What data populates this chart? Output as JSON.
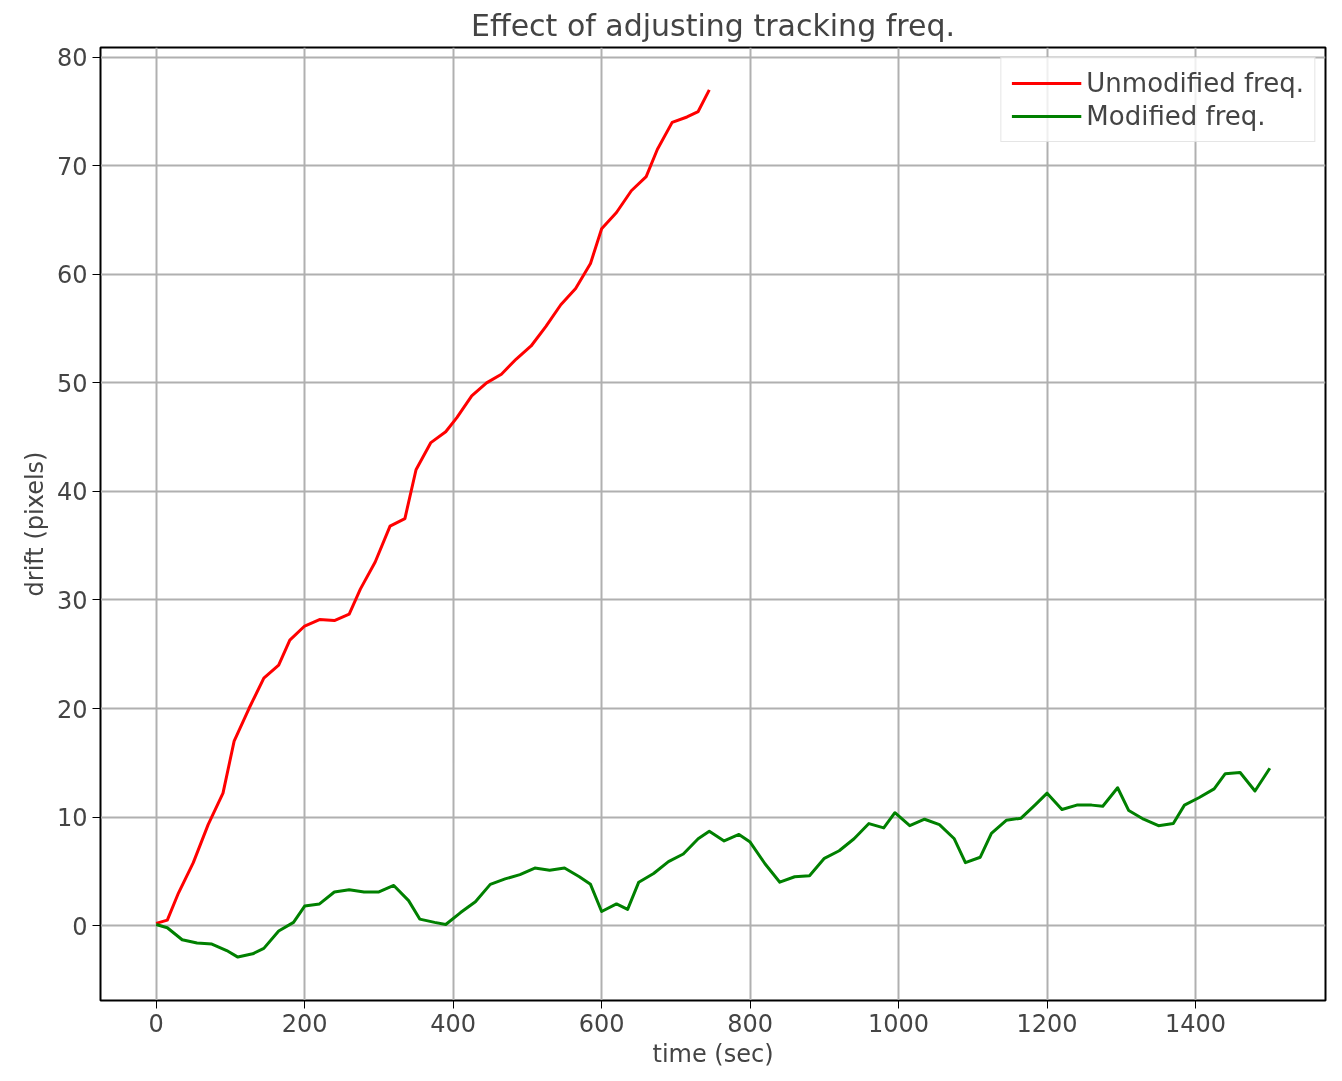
{
  "chart_data": {
    "type": "line",
    "title": "Effect of adjusting tracking freq.",
    "xlabel": "time (sec)",
    "ylabel": "drift (pixels)",
    "xlim": [
      -75,
      1575
    ],
    "ylim": [
      -6.9,
      80.9
    ],
    "xticks": [
      0,
      200,
      400,
      600,
      800,
      1000,
      1200,
      1400
    ],
    "yticks": [
      0,
      10,
      20,
      30,
      40,
      50,
      60,
      70,
      80
    ],
    "grid": true,
    "legend": "top right",
    "line_style": "solid",
    "series": [
      {
        "name": "Unmodified freq.",
        "color": "#ff0000",
        "x": [
          0,
          15,
          30,
          50,
          70,
          90,
          105,
          125,
          145,
          165,
          180,
          200,
          220,
          240,
          260,
          275,
          295,
          315,
          335,
          350,
          370,
          390,
          405,
          425,
          445,
          465,
          485,
          505,
          525,
          545,
          565,
          585,
          600,
          620,
          640,
          660,
          675,
          695,
          715,
          730,
          745
        ],
        "values": [
          0.2,
          0.5,
          3,
          5.8,
          9.3,
          12.2,
          17,
          20,
          22.8,
          24,
          26.3,
          27.6,
          28.2,
          28.1,
          28.7,
          31,
          33.5,
          36.8,
          37.5,
          42,
          44.5,
          45.5,
          46.8,
          48.8,
          50,
          50.8,
          52.2,
          53.4,
          55.2,
          57.2,
          58.7,
          61,
          64.2,
          65.7,
          67.7,
          69,
          71.5,
          74,
          74.5,
          75,
          77
        ]
      },
      {
        "name": "Modified freq.",
        "color": "#008000",
        "x": [
          0,
          15,
          35,
          55,
          75,
          95,
          110,
          130,
          145,
          165,
          185,
          200,
          220,
          240,
          260,
          280,
          300,
          320,
          340,
          355,
          375,
          390,
          410,
          430,
          450,
          470,
          490,
          510,
          530,
          550,
          570,
          585,
          600,
          620,
          635,
          650,
          670,
          690,
          710,
          730,
          745,
          765,
          785,
          800,
          820,
          840,
          860,
          880,
          900,
          920,
          940,
          960,
          980,
          995,
          1015,
          1035,
          1055,
          1075,
          1090,
          1110,
          1125,
          1145,
          1165,
          1185,
          1200,
          1220,
          1240,
          1260,
          1275,
          1295,
          1310,
          1330,
          1350,
          1370,
          1385,
          1405,
          1425,
          1440,
          1460,
          1480,
          1500
        ],
        "values": [
          0.1,
          -0.2,
          -1.3,
          -1.6,
          -1.7,
          -2.3,
          -2.9,
          -2.6,
          -2.1,
          -0.5,
          0.3,
          1.8,
          2.0,
          3.1,
          3.3,
          3.1,
          3.1,
          3.7,
          2.3,
          0.6,
          0.3,
          0.1,
          1.2,
          2.2,
          3.8,
          4.3,
          4.7,
          5.3,
          5.1,
          5.3,
          4.5,
          3.8,
          1.3,
          2.0,
          1.5,
          4.0,
          4.8,
          5.9,
          6.6,
          8.0,
          8.7,
          7.8,
          8.4,
          7.7,
          5.7,
          4.0,
          4.5,
          4.6,
          6.2,
          6.9,
          8.0,
          9.4,
          9.0,
          10.4,
          9.2,
          9.8,
          9.3,
          8.0,
          5.8,
          6.3,
          8.5,
          9.7,
          9.9,
          11.2,
          12.2,
          10.7,
          11.1,
          11.1,
          11.0,
          12.7,
          10.6,
          9.8,
          9.2,
          9.4,
          11.1,
          11.8,
          12.6,
          14.0,
          14.1,
          12.4,
          14.5
        ]
      }
    ]
  }
}
